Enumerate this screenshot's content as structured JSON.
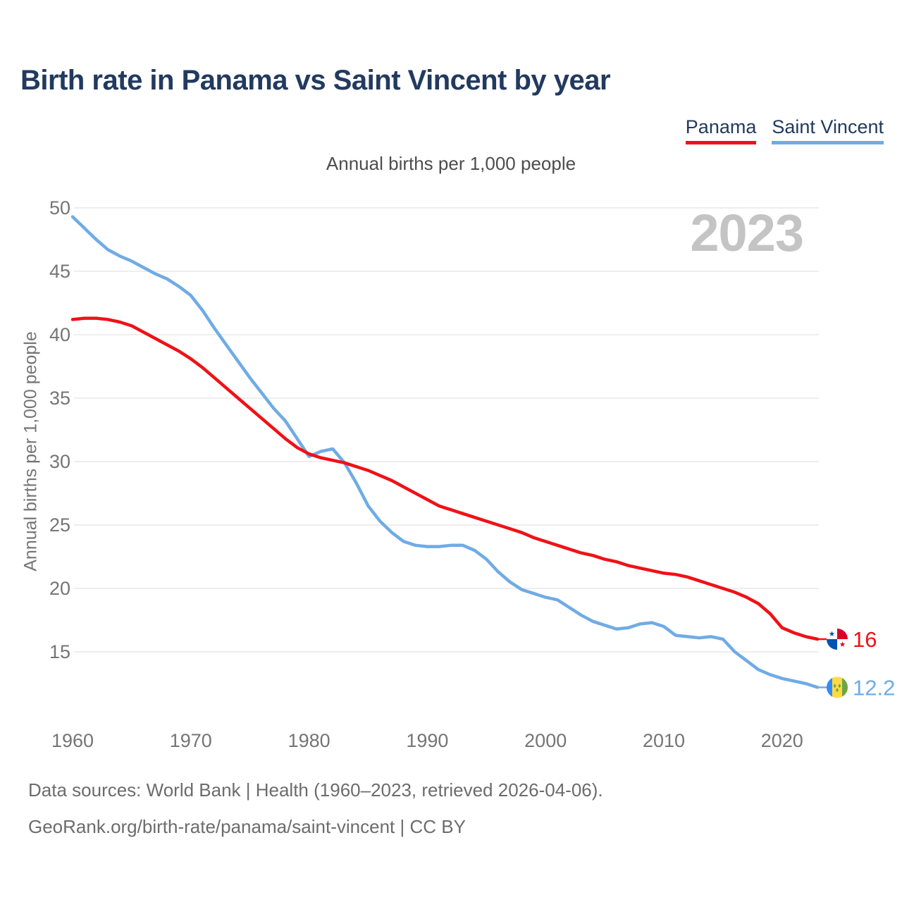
{
  "title": "Birth rate in Panama vs Saint Vincent by year",
  "subtitle": "Annual births per 1,000 people",
  "watermark": "2023",
  "y_axis_label": "Annual births per 1,000 people",
  "legend": [
    {
      "label": "Panama",
      "color": "#f01116"
    },
    {
      "label": "Saint Vincent",
      "color": "#6fabe6"
    }
  ],
  "end_labels": {
    "panama": {
      "value": "16",
      "flag": "panama-flag"
    },
    "saint_vincent": {
      "value": "12.2",
      "flag": "saint-vincent-flag"
    }
  },
  "footer": {
    "line1": "Data sources: World Bank | Health (1960–2023, retrieved 2026-04-06).",
    "line2": "GeoRank.org/birth-rate/panama/saint-vincent | CC BY"
  },
  "chart_data": {
    "type": "line",
    "title": "Birth rate in Panama vs Saint Vincent by year",
    "subtitle": "Annual births per 1,000 people",
    "ylabel": "Annual births per 1,000 people",
    "xlabel": "",
    "x": [
      1960,
      1961,
      1962,
      1963,
      1964,
      1965,
      1966,
      1967,
      1968,
      1969,
      1970,
      1971,
      1972,
      1973,
      1974,
      1975,
      1976,
      1977,
      1978,
      1979,
      1980,
      1981,
      1982,
      1983,
      1984,
      1985,
      1986,
      1987,
      1988,
      1989,
      1990,
      1991,
      1992,
      1993,
      1994,
      1995,
      1996,
      1997,
      1998,
      1999,
      2000,
      2001,
      2002,
      2003,
      2004,
      2005,
      2006,
      2007,
      2008,
      2009,
      2010,
      2011,
      2012,
      2013,
      2014,
      2015,
      2016,
      2017,
      2018,
      2019,
      2020,
      2021,
      2022,
      2023
    ],
    "series": [
      {
        "name": "Panama",
        "color": "#f01116",
        "end_value_label": "16",
        "values": [
          41.2,
          41.3,
          41.3,
          41.2,
          41.0,
          40.7,
          40.2,
          39.7,
          39.2,
          38.7,
          38.1,
          37.4,
          36.6,
          35.8,
          35.0,
          34.2,
          33.4,
          32.6,
          31.8,
          31.1,
          30.6,
          30.3,
          30.1,
          29.9,
          29.6,
          29.3,
          28.9,
          28.5,
          28.0,
          27.5,
          27.0,
          26.5,
          26.2,
          25.9,
          25.6,
          25.3,
          25.0,
          24.7,
          24.4,
          24.0,
          23.7,
          23.4,
          23.1,
          22.8,
          22.6,
          22.3,
          22.1,
          21.8,
          21.6,
          21.4,
          21.2,
          21.1,
          20.9,
          20.6,
          20.3,
          20.0,
          19.7,
          19.3,
          18.8,
          18.0,
          16.9,
          16.5,
          16.2,
          16.0
        ]
      },
      {
        "name": "Saint Vincent",
        "color": "#6fabe6",
        "end_value_label": "12.2",
        "values": [
          49.3,
          48.4,
          47.5,
          46.7,
          46.2,
          45.8,
          45.3,
          44.8,
          44.4,
          43.8,
          43.1,
          41.9,
          40.5,
          39.2,
          37.9,
          36.6,
          35.4,
          34.2,
          33.2,
          31.8,
          30.4,
          30.8,
          31.0,
          29.9,
          28.3,
          26.5,
          25.3,
          24.4,
          23.7,
          23.4,
          23.3,
          23.3,
          23.4,
          23.4,
          23.0,
          22.3,
          21.3,
          20.5,
          19.9,
          19.6,
          19.3,
          19.1,
          18.5,
          17.9,
          17.4,
          17.1,
          16.8,
          16.9,
          17.2,
          17.3,
          17.0,
          16.3,
          16.2,
          16.1,
          16.2,
          16.0,
          15.0,
          14.3,
          13.6,
          13.2,
          12.9,
          12.7,
          12.5,
          12.2
        ]
      }
    ],
    "xticks": [
      1960,
      1970,
      1980,
      1990,
      2000,
      2010,
      2020
    ],
    "yticks": [
      15,
      20,
      25,
      30,
      35,
      40,
      45,
      50
    ],
    "xlim": [
      1960,
      2023
    ],
    "ylim": [
      12,
      50.5
    ],
    "grid": "horizontal",
    "legend_position": "top-right",
    "annotation": "2023"
  }
}
